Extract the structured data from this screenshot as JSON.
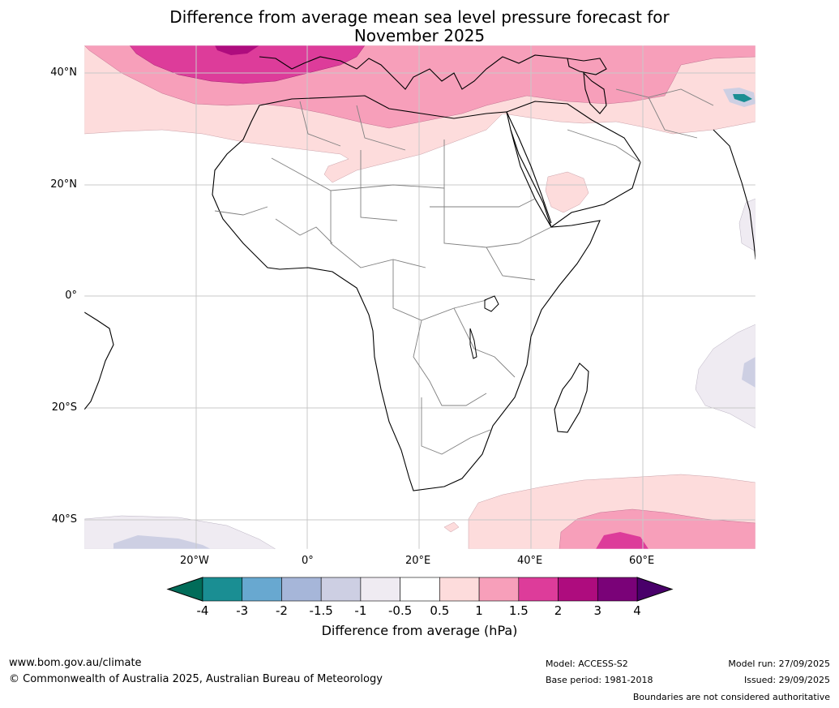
{
  "title": {
    "line1": "Difference from average mean sea level pressure forecast for",
    "line2": "November 2025"
  },
  "map": {
    "lat_labels": [
      "40°N",
      "20°N",
      "0°",
      "20°S",
      "40°S"
    ],
    "lon_labels": [
      "20°W",
      "0°",
      "20°E",
      "40°E",
      "60°E"
    ],
    "extent": {
      "lon_min": -40,
      "lon_max": 80,
      "lat_min": -45,
      "lat_max": 45
    }
  },
  "colorbar": {
    "ticks": [
      "-4",
      "-3",
      "-2",
      "-1.5",
      "-1",
      "-0.5",
      "0.5",
      "1",
      "1.5",
      "2",
      "3",
      "4"
    ],
    "colors": [
      "#1a8e93",
      "#68a8d0",
      "#a6b6d9",
      "#cdcfe3",
      "#efebf2",
      "#ffffff",
      "#fddcdc",
      "#f79fba",
      "#dd3c9a",
      "#ae0c7e",
      "#7a0278"
    ],
    "under_color": "#016c59",
    "over_color": "#49006a",
    "label": "Difference from average (hPa)"
  },
  "footer": {
    "website": "www.bom.gov.au/climate",
    "copyright": "© Commonwealth of Australia 2025, Australian Bureau of Meteorology",
    "model": "Model: ACCESS-S2",
    "base_period": "Base period: 1981-2018",
    "model_run": "Model run: 27/09/2025",
    "issued": "Issued: 29/09/2025",
    "disclaimer": "Boundaries are not considered authoritative"
  }
}
